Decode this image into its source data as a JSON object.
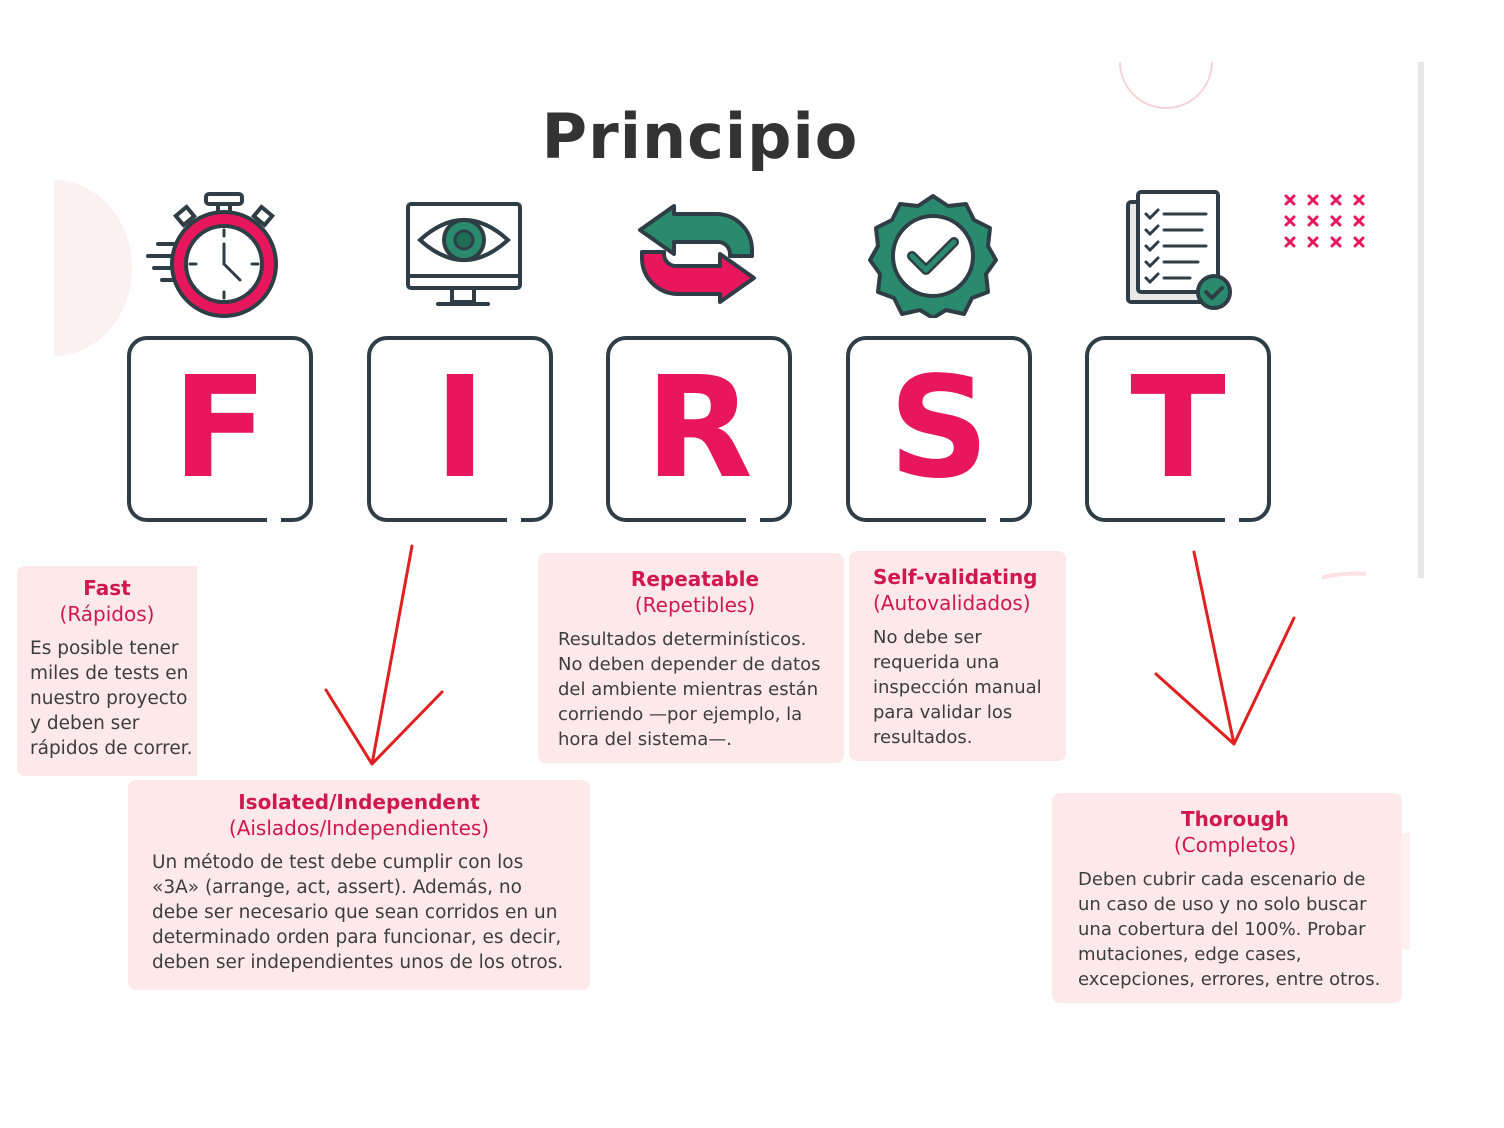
{
  "title": "Principio",
  "letters": [
    "F",
    "I",
    "R",
    "S",
    "T"
  ],
  "icons": [
    "stopwatch-icon",
    "monitor-eye-icon",
    "repeat-arrows-icon",
    "check-badge-icon",
    "checklist-icon"
  ],
  "colors": {
    "accent": "#e8175d",
    "teal": "#2a8a6e",
    "outline": "#2f3e46",
    "card_bg": "#fde8ea",
    "arrow": "#e02020"
  },
  "cards": {
    "fast": {
      "title": "Fast",
      "subtitle": "(Rápidos)",
      "body": "Es posible tener miles de tests en nuestro proyecto y deben ser rápidos de correr."
    },
    "isolated": {
      "title": "Isolated/Independent",
      "subtitle": "(Aislados/Independientes)",
      "body": "Un método de test debe cumplir con los «3A» (arrange, act, assert). Además, no debe ser necesario que sean corridos en un determinado orden para funcionar, es decir, deben ser independientes unos de los otros."
    },
    "repeatable": {
      "title": "Repeatable",
      "subtitle": "(Repetibles)",
      "body": "Resultados determinísticos. No deben depender de datos del ambiente mientras están corriendo —por ejemplo, la hora del sistema—."
    },
    "self_validating": {
      "title": "Self-validating",
      "subtitle": "(Autovalidados)",
      "body": "No debe ser requerida una inspección manual para validar los resultados."
    },
    "thorough": {
      "title": "Thorough",
      "subtitle": "(Completos)",
      "body": "Deben cubrir cada escenario de un caso de uso y no solo buscar una cobertura del 100%. Probar mutaciones, edge cases, excepciones, errores, entre otros."
    }
  }
}
